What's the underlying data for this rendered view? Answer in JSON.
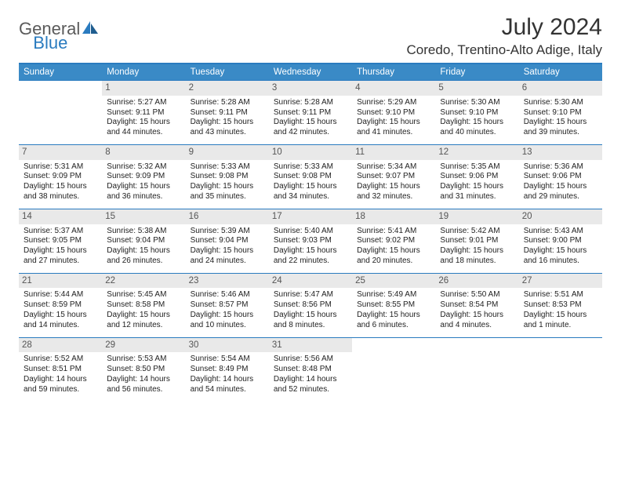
{
  "logo": {
    "text1": "General",
    "text2": "Blue"
  },
  "title": "July 2024",
  "location": "Coredo, Trentino-Alto Adige, Italy",
  "colors": {
    "header_bg": "#3a8ac6",
    "header_text": "#ffffff",
    "divider": "#2a7bbf",
    "daynum_bg": "#e9e9e9",
    "daynum_text": "#555555",
    "body_text": "#222222",
    "logo_gray": "#5a5a5a",
    "logo_blue": "#2a7bbf"
  },
  "weekdays": [
    "Sunday",
    "Monday",
    "Tuesday",
    "Wednesday",
    "Thursday",
    "Friday",
    "Saturday"
  ],
  "weeks": [
    [
      null,
      {
        "n": "1",
        "sr": "Sunrise: 5:27 AM",
        "ss": "Sunset: 9:11 PM",
        "d1": "Daylight: 15 hours",
        "d2": "and 44 minutes."
      },
      {
        "n": "2",
        "sr": "Sunrise: 5:28 AM",
        "ss": "Sunset: 9:11 PM",
        "d1": "Daylight: 15 hours",
        "d2": "and 43 minutes."
      },
      {
        "n": "3",
        "sr": "Sunrise: 5:28 AM",
        "ss": "Sunset: 9:11 PM",
        "d1": "Daylight: 15 hours",
        "d2": "and 42 minutes."
      },
      {
        "n": "4",
        "sr": "Sunrise: 5:29 AM",
        "ss": "Sunset: 9:10 PM",
        "d1": "Daylight: 15 hours",
        "d2": "and 41 minutes."
      },
      {
        "n": "5",
        "sr": "Sunrise: 5:30 AM",
        "ss": "Sunset: 9:10 PM",
        "d1": "Daylight: 15 hours",
        "d2": "and 40 minutes."
      },
      {
        "n": "6",
        "sr": "Sunrise: 5:30 AM",
        "ss": "Sunset: 9:10 PM",
        "d1": "Daylight: 15 hours",
        "d2": "and 39 minutes."
      }
    ],
    [
      {
        "n": "7",
        "sr": "Sunrise: 5:31 AM",
        "ss": "Sunset: 9:09 PM",
        "d1": "Daylight: 15 hours",
        "d2": "and 38 minutes."
      },
      {
        "n": "8",
        "sr": "Sunrise: 5:32 AM",
        "ss": "Sunset: 9:09 PM",
        "d1": "Daylight: 15 hours",
        "d2": "and 36 minutes."
      },
      {
        "n": "9",
        "sr": "Sunrise: 5:33 AM",
        "ss": "Sunset: 9:08 PM",
        "d1": "Daylight: 15 hours",
        "d2": "and 35 minutes."
      },
      {
        "n": "10",
        "sr": "Sunrise: 5:33 AM",
        "ss": "Sunset: 9:08 PM",
        "d1": "Daylight: 15 hours",
        "d2": "and 34 minutes."
      },
      {
        "n": "11",
        "sr": "Sunrise: 5:34 AM",
        "ss": "Sunset: 9:07 PM",
        "d1": "Daylight: 15 hours",
        "d2": "and 32 minutes."
      },
      {
        "n": "12",
        "sr": "Sunrise: 5:35 AM",
        "ss": "Sunset: 9:06 PM",
        "d1": "Daylight: 15 hours",
        "d2": "and 31 minutes."
      },
      {
        "n": "13",
        "sr": "Sunrise: 5:36 AM",
        "ss": "Sunset: 9:06 PM",
        "d1": "Daylight: 15 hours",
        "d2": "and 29 minutes."
      }
    ],
    [
      {
        "n": "14",
        "sr": "Sunrise: 5:37 AM",
        "ss": "Sunset: 9:05 PM",
        "d1": "Daylight: 15 hours",
        "d2": "and 27 minutes."
      },
      {
        "n": "15",
        "sr": "Sunrise: 5:38 AM",
        "ss": "Sunset: 9:04 PM",
        "d1": "Daylight: 15 hours",
        "d2": "and 26 minutes."
      },
      {
        "n": "16",
        "sr": "Sunrise: 5:39 AM",
        "ss": "Sunset: 9:04 PM",
        "d1": "Daylight: 15 hours",
        "d2": "and 24 minutes."
      },
      {
        "n": "17",
        "sr": "Sunrise: 5:40 AM",
        "ss": "Sunset: 9:03 PM",
        "d1": "Daylight: 15 hours",
        "d2": "and 22 minutes."
      },
      {
        "n": "18",
        "sr": "Sunrise: 5:41 AM",
        "ss": "Sunset: 9:02 PM",
        "d1": "Daylight: 15 hours",
        "d2": "and 20 minutes."
      },
      {
        "n": "19",
        "sr": "Sunrise: 5:42 AM",
        "ss": "Sunset: 9:01 PM",
        "d1": "Daylight: 15 hours",
        "d2": "and 18 minutes."
      },
      {
        "n": "20",
        "sr": "Sunrise: 5:43 AM",
        "ss": "Sunset: 9:00 PM",
        "d1": "Daylight: 15 hours",
        "d2": "and 16 minutes."
      }
    ],
    [
      {
        "n": "21",
        "sr": "Sunrise: 5:44 AM",
        "ss": "Sunset: 8:59 PM",
        "d1": "Daylight: 15 hours",
        "d2": "and 14 minutes."
      },
      {
        "n": "22",
        "sr": "Sunrise: 5:45 AM",
        "ss": "Sunset: 8:58 PM",
        "d1": "Daylight: 15 hours",
        "d2": "and 12 minutes."
      },
      {
        "n": "23",
        "sr": "Sunrise: 5:46 AM",
        "ss": "Sunset: 8:57 PM",
        "d1": "Daylight: 15 hours",
        "d2": "and 10 minutes."
      },
      {
        "n": "24",
        "sr": "Sunrise: 5:47 AM",
        "ss": "Sunset: 8:56 PM",
        "d1": "Daylight: 15 hours",
        "d2": "and 8 minutes."
      },
      {
        "n": "25",
        "sr": "Sunrise: 5:49 AM",
        "ss": "Sunset: 8:55 PM",
        "d1": "Daylight: 15 hours",
        "d2": "and 6 minutes."
      },
      {
        "n": "26",
        "sr": "Sunrise: 5:50 AM",
        "ss": "Sunset: 8:54 PM",
        "d1": "Daylight: 15 hours",
        "d2": "and 4 minutes."
      },
      {
        "n": "27",
        "sr": "Sunrise: 5:51 AM",
        "ss": "Sunset: 8:53 PM",
        "d1": "Daylight: 15 hours",
        "d2": "and 1 minute."
      }
    ],
    [
      {
        "n": "28",
        "sr": "Sunrise: 5:52 AM",
        "ss": "Sunset: 8:51 PM",
        "d1": "Daylight: 14 hours",
        "d2": "and 59 minutes."
      },
      {
        "n": "29",
        "sr": "Sunrise: 5:53 AM",
        "ss": "Sunset: 8:50 PM",
        "d1": "Daylight: 14 hours",
        "d2": "and 56 minutes."
      },
      {
        "n": "30",
        "sr": "Sunrise: 5:54 AM",
        "ss": "Sunset: 8:49 PM",
        "d1": "Daylight: 14 hours",
        "d2": "and 54 minutes."
      },
      {
        "n": "31",
        "sr": "Sunrise: 5:56 AM",
        "ss": "Sunset: 8:48 PM",
        "d1": "Daylight: 14 hours",
        "d2": "and 52 minutes."
      },
      null,
      null,
      null
    ]
  ]
}
